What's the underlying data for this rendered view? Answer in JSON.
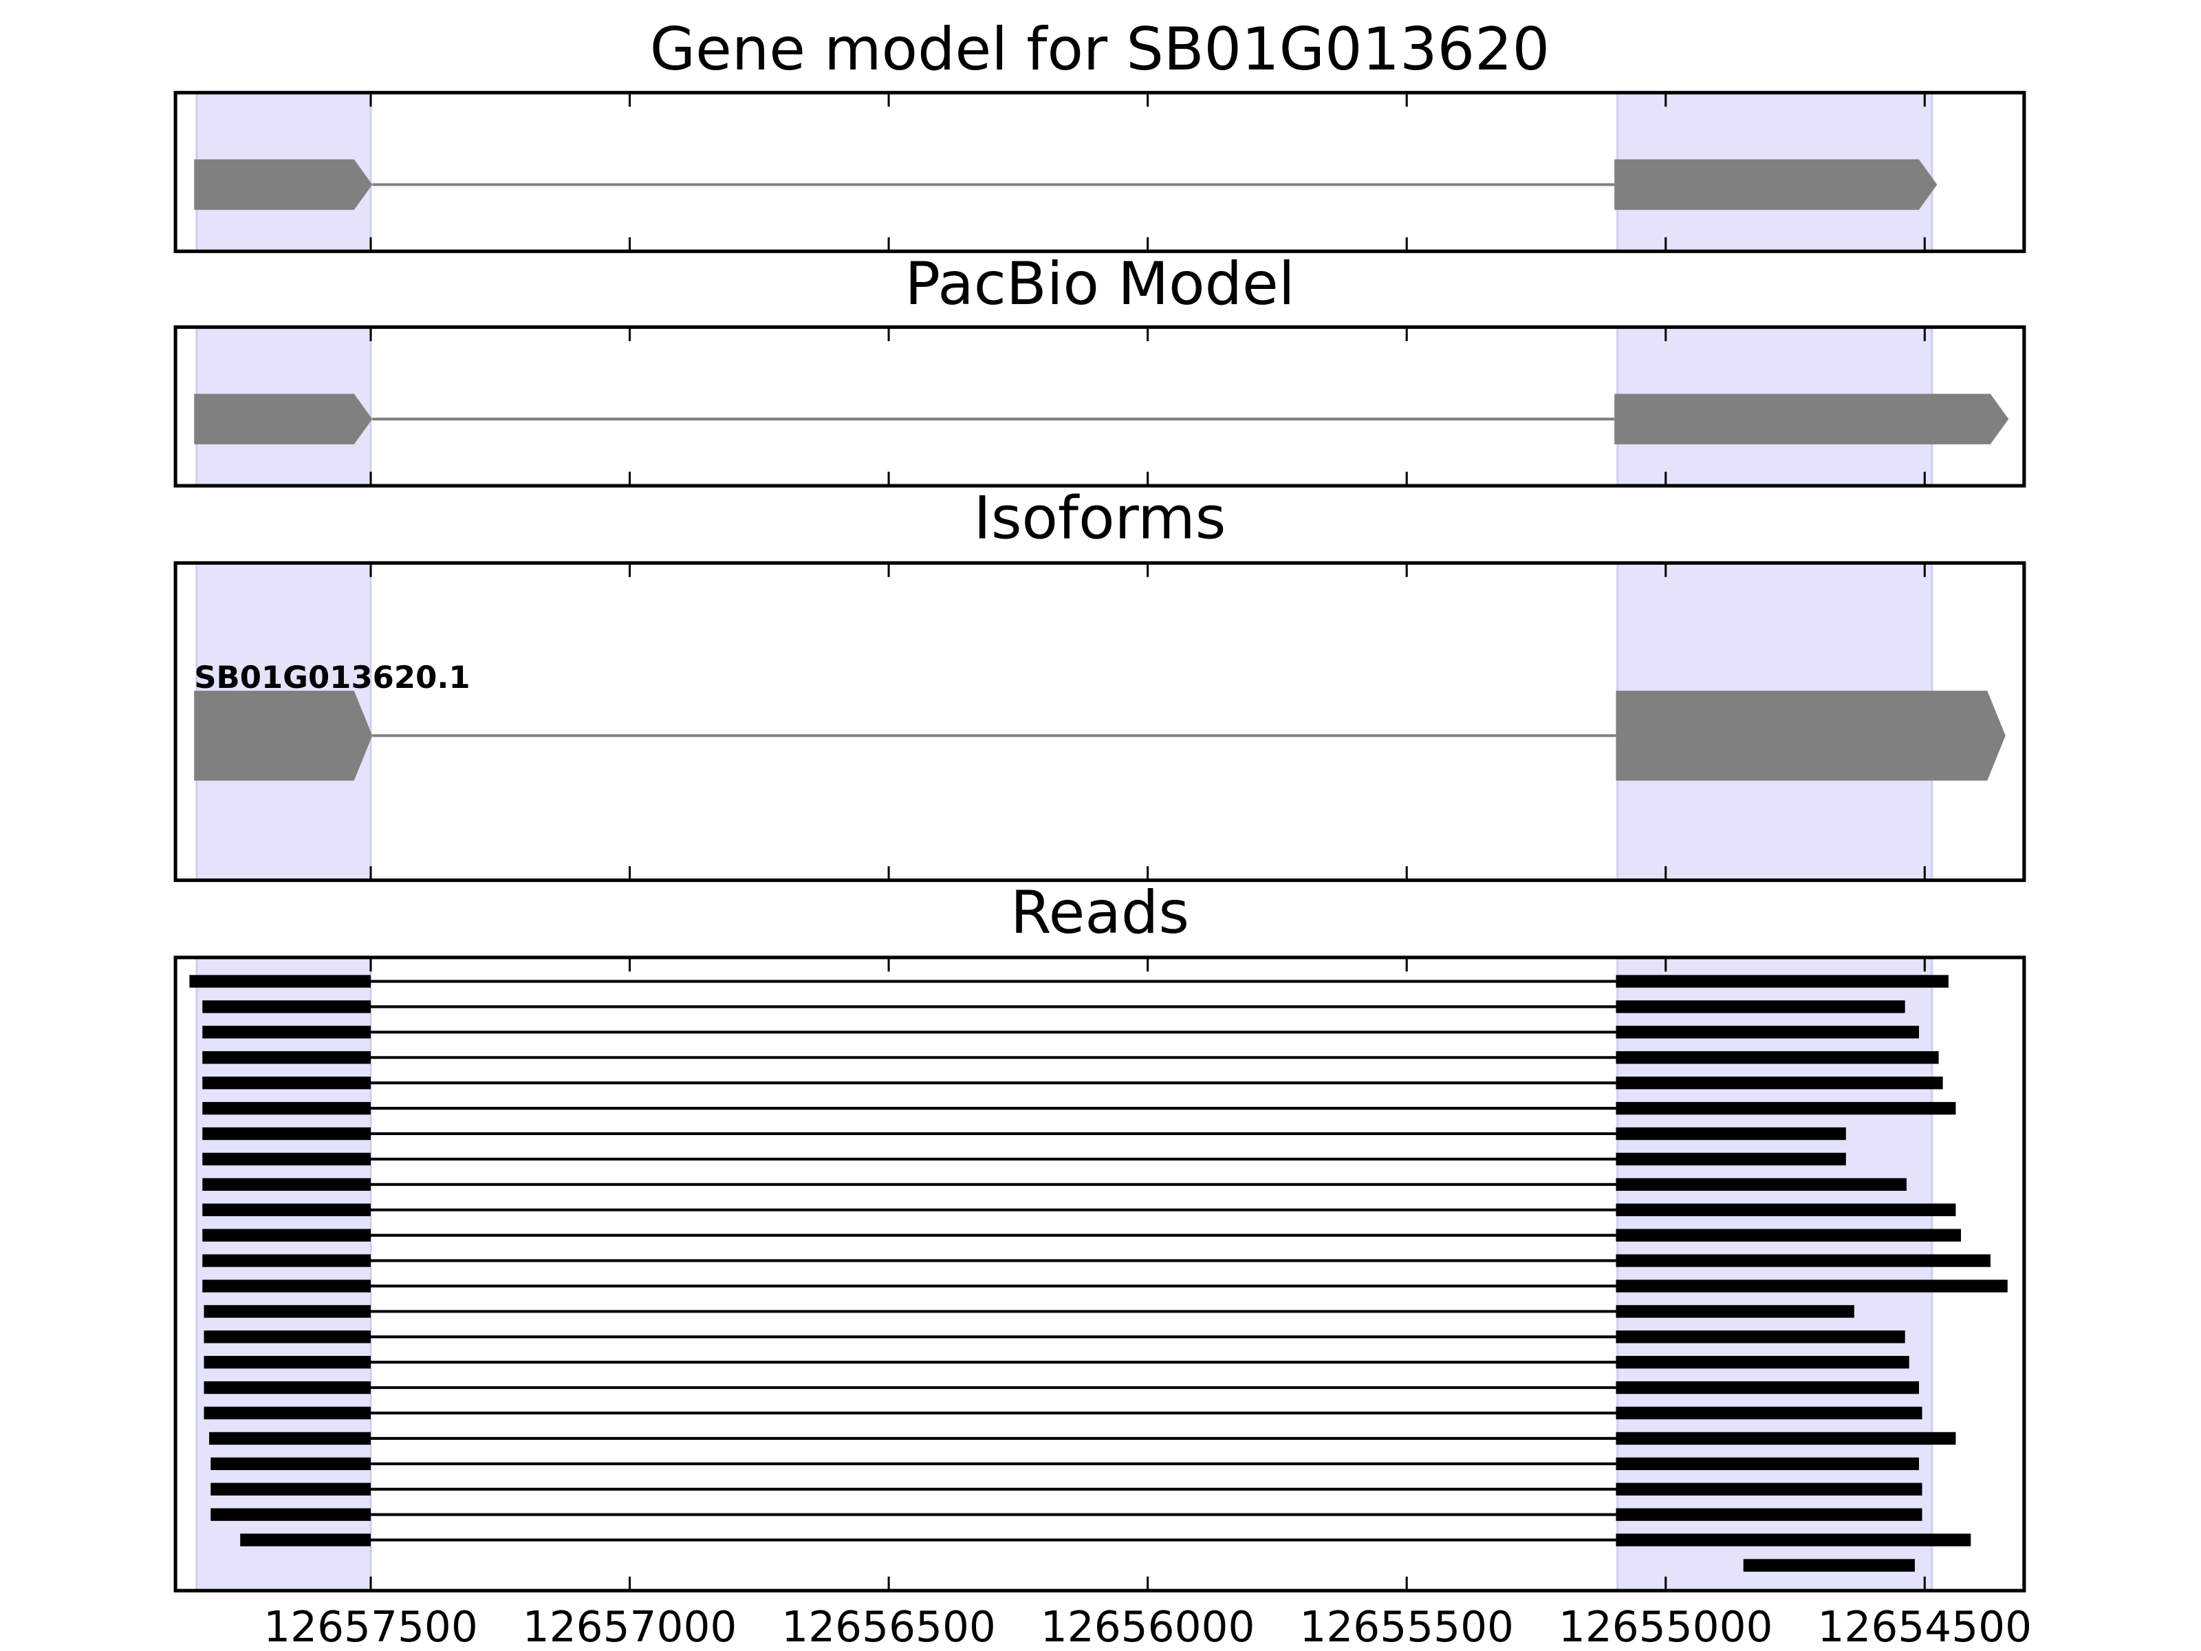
{
  "chart_data": {
    "type": "gene-tracks",
    "xlim": [
      12657877,
      12654308
    ],
    "xticks": [
      12657500,
      12657000,
      12656500,
      12656000,
      12655500,
      12655000,
      12654500
    ],
    "highlight": [
      [
        12657836,
        12657500
      ],
      [
        12655093,
        12654486
      ]
    ],
    "panels": [
      {
        "type": "gene",
        "title": "Gene model for SB01G013620",
        "exons": [
          [
            12657841,
            12657497
          ],
          [
            12655099,
            12654476
          ]
        ]
      },
      {
        "type": "gene",
        "title": "PacBio Model",
        "exons": [
          [
            12657841,
            12657497
          ],
          [
            12655099,
            12654338
          ]
        ]
      },
      {
        "type": "isoforms",
        "title": "Isoforms",
        "isoforms": [
          {
            "name": "SB01G013620.1",
            "exons": [
              [
                12657841,
                12657497
              ],
              [
                12655096,
                12654344
              ]
            ]
          }
        ]
      },
      {
        "type": "reads",
        "title": "Reads",
        "reads": [
          [
            [
              12657850,
              12657500
            ],
            [
              12655096,
              12654454
            ]
          ],
          [
            [
              12657825,
              12657500
            ],
            [
              12655096,
              12654538
            ]
          ],
          [
            [
              12657825,
              12657500
            ],
            [
              12655096,
              12654511
            ]
          ],
          [
            [
              12657825,
              12657500
            ],
            [
              12655096,
              12654473
            ]
          ],
          [
            [
              12657825,
              12657500
            ],
            [
              12655096,
              12654465
            ]
          ],
          [
            [
              12657825,
              12657500
            ],
            [
              12655096,
              12654440
            ]
          ],
          [
            [
              12657825,
              12657500
            ],
            [
              12655096,
              12654652
            ]
          ],
          [
            [
              12657825,
              12657500
            ],
            [
              12655096,
              12654652
            ]
          ],
          [
            [
              12657825,
              12657500
            ],
            [
              12655096,
              12654535
            ]
          ],
          [
            [
              12657825,
              12657500
            ],
            [
              12655096,
              12654440
            ]
          ],
          [
            [
              12657825,
              12657500
            ],
            [
              12655096,
              12654430
            ]
          ],
          [
            [
              12657825,
              12657500
            ],
            [
              12655096,
              12654373
            ]
          ],
          [
            [
              12657825,
              12657500
            ],
            [
              12655096,
              12654340
            ]
          ],
          [
            [
              12657822,
              12657500
            ],
            [
              12655096,
              12654636
            ]
          ],
          [
            [
              12657822,
              12657500
            ],
            [
              12655096,
              12654538
            ]
          ],
          [
            [
              12657822,
              12657500
            ],
            [
              12655096,
              12654530
            ]
          ],
          [
            [
              12657822,
              12657500
            ],
            [
              12655096,
              12654511
            ]
          ],
          [
            [
              12657822,
              12657500
            ],
            [
              12655096,
              12654505
            ]
          ],
          [
            [
              12657812,
              12657500
            ],
            [
              12655096,
              12654440
            ]
          ],
          [
            [
              12657809,
              12657500
            ],
            [
              12655096,
              12654511
            ]
          ],
          [
            [
              12657809,
              12657500
            ],
            [
              12655096,
              12654505
            ]
          ],
          [
            [
              12657809,
              12657500
            ],
            [
              12655096,
              12654505
            ]
          ],
          [
            [
              12657752,
              12657500
            ],
            [
              12655096,
              12654411
            ]
          ],
          [
            [
              12654850,
              12654519
            ]
          ]
        ]
      }
    ]
  }
}
